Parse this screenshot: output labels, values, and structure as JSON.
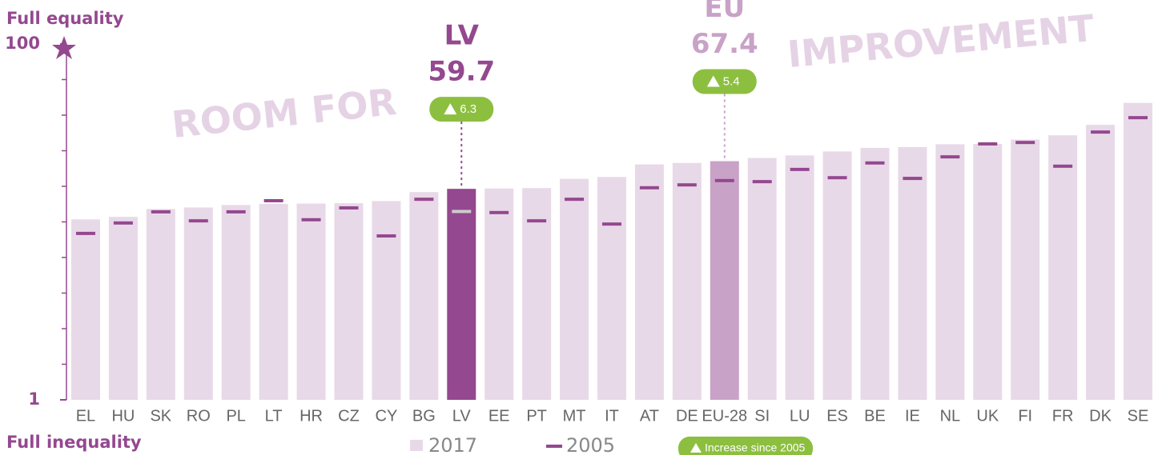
{
  "chart_data": {
    "type": "bar",
    "y_top_label": "Full equality",
    "y_bottom_label": "Full inequality",
    "watermark": [
      "ROOM FOR",
      "IMPROVEMENT"
    ],
    "categories": [
      "EL",
      "HU",
      "SK",
      "RO",
      "PL",
      "LT",
      "HR",
      "CZ",
      "CY",
      "BG",
      "LV",
      "EE",
      "PT",
      "MT",
      "IT",
      "AT",
      "DE",
      "EU-28",
      "SI",
      "LU",
      "ES",
      "BE",
      "IE",
      "NL",
      "UK",
      "FI",
      "FR",
      "DK",
      "SE"
    ],
    "series": [
      {
        "name": "2017",
        "color": "#e8d9e8",
        "values": [
          51.2,
          51.9,
          54.1,
          54.5,
          55.2,
          55.5,
          55.6,
          55.7,
          56.3,
          58.8,
          59.7,
          59.8,
          59.9,
          62.5,
          63.0,
          66.5,
          66.9,
          67.4,
          68.3,
          69.0,
          70.1,
          71.1,
          71.3,
          72.1,
          72.2,
          73.4,
          74.6,
          77.5,
          83.6
        ]
      },
      {
        "name": "2005",
        "color": "#94488f",
        "values": [
          47.3,
          50.2,
          53.3,
          50.8,
          53.3,
          56.4,
          51.1,
          54.4,
          46.6,
          56.8,
          53.4,
          53.1,
          50.8,
          56.8,
          49.9,
          60.0,
          60.8,
          62.0,
          61.7,
          65.1,
          62.8,
          66.9,
          62.6,
          68.6,
          72.2,
          72.6,
          66.0,
          75.5,
          79.5
        ]
      }
    ],
    "highlights": [
      {
        "label": "LV",
        "category": "LV",
        "increase": 6.3,
        "bar_color": "#94488f",
        "text_color": "#94488f",
        "marker_color": "#cccccc"
      },
      {
        "label": "EU",
        "category": "EU-28",
        "increase": 5.4,
        "bar_color": "#c9a2c8",
        "text_color": "#c9a2c8",
        "marker_color": "#94488f"
      }
    ],
    "increase_legend": "Increase since 2005",
    "increase_color": "#8cbf3f",
    "ylim": [
      1,
      100
    ],
    "yticks": [
      1,
      100
    ]
  }
}
